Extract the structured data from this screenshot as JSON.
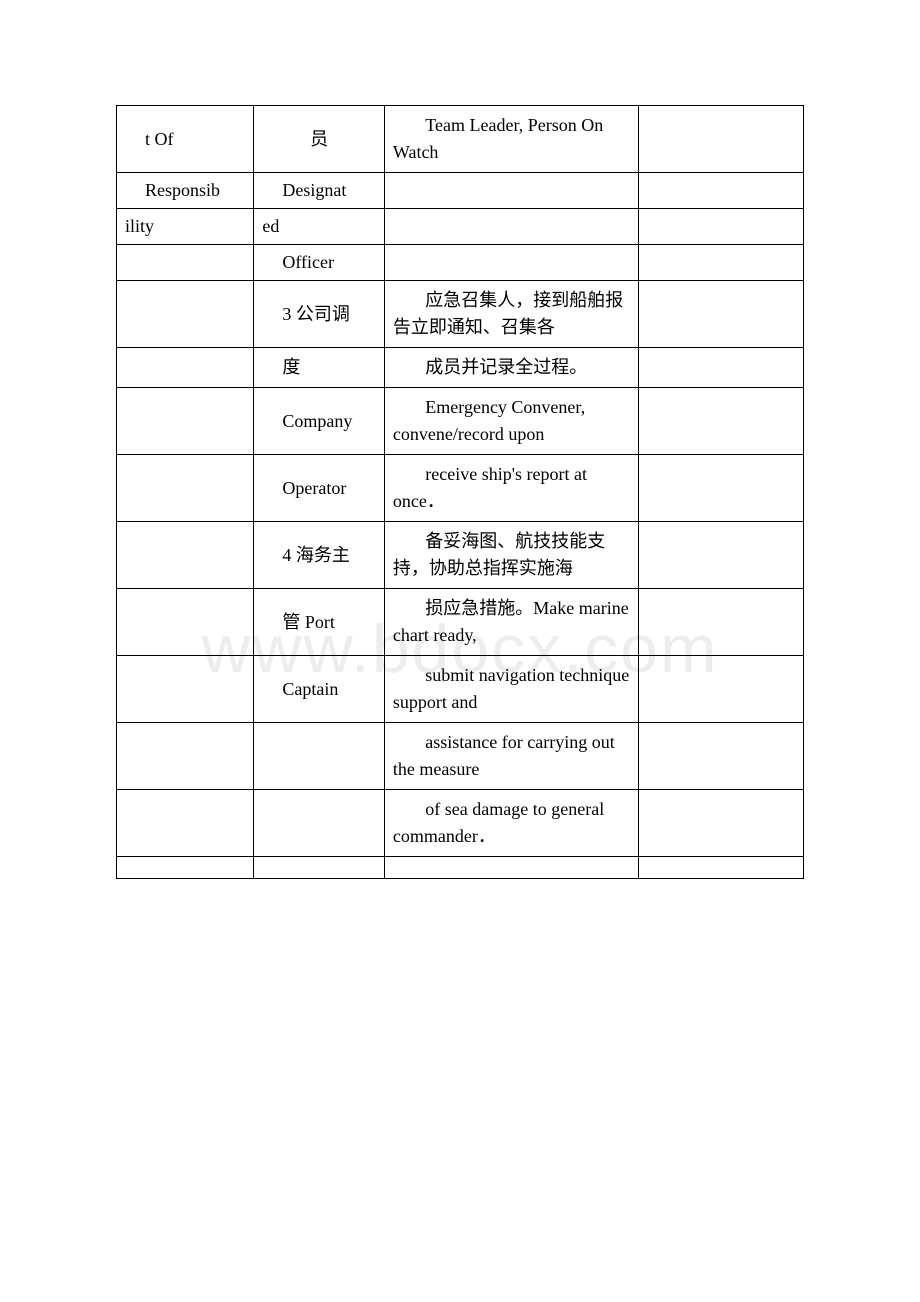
{
  "watermark": "www.bdocx.com",
  "table": {
    "border_color": "#000000",
    "background_color": "#ffffff",
    "font_family": "Times New Roman / SimSun",
    "base_fontsize": 18,
    "columns": [
      {
        "width_pct": 20
      },
      {
        "width_pct": 19
      },
      {
        "width_pct": 37
      },
      {
        "width_pct": 24
      }
    ],
    "rows": [
      {
        "cells": [
          "t Of",
          "员",
          "Team Leader, Person On Watch",
          ""
        ]
      },
      {
        "cells": [
          "Responsib",
          "Designat",
          "",
          ""
        ]
      },
      {
        "cells": [
          "ility",
          "ed",
          "",
          ""
        ]
      },
      {
        "cells": [
          "",
          "Officer",
          "",
          ""
        ]
      },
      {
        "cells": [
          "",
          "3 公司调",
          "应急召集人，接到船舶报告立即通知、召集各",
          ""
        ]
      },
      {
        "cells": [
          "",
          "度",
          "成员并记录全过程。",
          ""
        ]
      },
      {
        "cells": [
          "",
          "Company",
          "Emergency Convener, convene/record upon",
          ""
        ]
      },
      {
        "cells": [
          "",
          "Operator",
          "receive ship's report at once．",
          ""
        ]
      },
      {
        "cells": [
          "",
          "4 海务主",
          "备妥海图、航技技能支持，协助总指挥实施海",
          ""
        ]
      },
      {
        "cells": [
          "",
          "管 Port",
          "损应急措施。Make marine chart ready,",
          ""
        ]
      },
      {
        "cells": [
          "",
          "Captain",
          "submit navigation technique support and",
          ""
        ]
      },
      {
        "cells": [
          "",
          "",
          "assistance for carrying out the measure",
          ""
        ]
      },
      {
        "cells": [
          "",
          "",
          "of sea damage to general commander．",
          ""
        ]
      },
      {
        "cells": [
          "",
          "",
          "",
          ""
        ]
      }
    ]
  }
}
